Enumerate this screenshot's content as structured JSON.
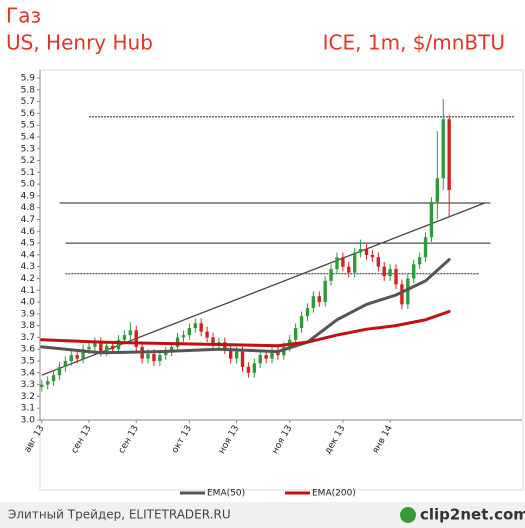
{
  "chart_data": {
    "type": "candlestick",
    "title": "Газ",
    "subtitle": "US, Henry Hub",
    "source_label": "ICE, 1m, $/mnBTU",
    "up_color": "#2e9a3a",
    "down_color": "#d42020",
    "open": [
      3.28,
      3.3,
      3.33,
      3.38,
      3.45,
      3.5,
      3.55,
      3.52,
      3.6,
      3.62,
      3.66,
      3.58,
      3.63,
      3.6,
      3.68,
      3.72,
      3.76,
      3.62,
      3.52,
      3.56,
      3.5,
      3.55,
      3.58,
      3.62,
      3.7,
      3.72,
      3.78,
      3.82,
      3.75,
      3.7,
      3.64,
      3.66,
      3.6,
      3.52,
      3.58,
      3.45,
      3.4,
      3.48,
      3.55,
      3.52,
      3.58,
      3.55,
      3.62,
      3.68,
      3.78,
      3.88,
      3.95,
      4.05,
      4.0,
      4.18,
      4.28,
      4.38,
      4.3,
      4.25,
      4.42,
      4.45,
      4.4,
      4.38,
      4.3,
      4.22,
      4.28,
      4.15,
      3.98,
      4.2,
      4.32,
      4.38,
      4.55,
      4.85,
      5.05,
      5.55
    ],
    "high": [
      3.34,
      3.37,
      3.42,
      3.49,
      3.54,
      3.59,
      3.59,
      3.64,
      3.66,
      3.7,
      3.7,
      3.67,
      3.67,
      3.72,
      3.76,
      3.83,
      3.8,
      3.66,
      3.6,
      3.6,
      3.59,
      3.62,
      3.66,
      3.74,
      3.76,
      3.82,
      3.86,
      3.86,
      3.79,
      3.74,
      3.7,
      3.7,
      3.64,
      3.62,
      3.62,
      3.49,
      3.52,
      3.59,
      3.59,
      3.62,
      3.62,
      3.66,
      3.72,
      3.82,
      3.92,
      3.99,
      4.09,
      4.09,
      4.22,
      4.32,
      4.42,
      4.42,
      4.34,
      4.46,
      4.53,
      4.49,
      4.44,
      4.42,
      4.34,
      4.32,
      4.32,
      4.19,
      4.24,
      4.36,
      4.42,
      4.59,
      4.89,
      5.45,
      5.72,
      5.59
    ],
    "low": [
      3.24,
      3.26,
      3.29,
      3.34,
      3.41,
      3.46,
      3.48,
      3.48,
      3.56,
      3.58,
      3.54,
      3.54,
      3.56,
      3.56,
      3.64,
      3.68,
      3.58,
      3.48,
      3.48,
      3.46,
      3.46,
      3.51,
      3.54,
      3.58,
      3.66,
      3.68,
      3.74,
      3.71,
      3.66,
      3.6,
      3.6,
      3.56,
      3.48,
      3.48,
      3.41,
      3.36,
      3.36,
      3.44,
      3.48,
      3.48,
      3.51,
      3.51,
      3.58,
      3.64,
      3.74,
      3.84,
      3.91,
      3.96,
      3.96,
      4.14,
      4.24,
      4.26,
      4.21,
      4.21,
      4.38,
      4.36,
      4.34,
      4.26,
      4.18,
      4.18,
      4.11,
      3.94,
      3.94,
      4.16,
      4.28,
      4.34,
      4.51,
      4.7,
      4.95,
      4.73
    ],
    "close": [
      3.3,
      3.33,
      3.38,
      3.45,
      3.5,
      3.55,
      3.52,
      3.6,
      3.62,
      3.66,
      3.58,
      3.63,
      3.6,
      3.68,
      3.72,
      3.76,
      3.62,
      3.52,
      3.56,
      3.5,
      3.55,
      3.58,
      3.62,
      3.7,
      3.72,
      3.78,
      3.82,
      3.75,
      3.7,
      3.64,
      3.66,
      3.6,
      3.52,
      3.58,
      3.45,
      3.4,
      3.48,
      3.55,
      3.52,
      3.58,
      3.55,
      3.62,
      3.68,
      3.78,
      3.88,
      3.95,
      4.05,
      4.0,
      4.18,
      4.28,
      4.38,
      4.3,
      4.25,
      4.42,
      4.45,
      4.4,
      4.38,
      4.3,
      4.22,
      4.28,
      4.15,
      3.98,
      4.2,
      4.32,
      4.38,
      4.55,
      4.85,
      5.05,
      5.55,
      4.95
    ],
    "series": [
      {
        "name": "EMA(50)",
        "color": "#555555",
        "x": [
          0,
          10,
          20,
          30,
          40,
          45,
          50,
          55,
          60,
          65,
          69
        ],
        "values": [
          3.62,
          3.57,
          3.58,
          3.6,
          3.58,
          3.66,
          3.85,
          3.98,
          4.06,
          4.18,
          4.36
        ]
      },
      {
        "name": "EMA(200)",
        "color": "#c01010",
        "x": [
          0,
          10,
          20,
          30,
          40,
          45,
          50,
          55,
          60,
          65,
          69
        ],
        "values": [
          3.68,
          3.66,
          3.65,
          3.64,
          3.63,
          3.66,
          3.72,
          3.77,
          3.8,
          3.85,
          3.92
        ]
      }
    ],
    "levels": [
      {
        "value": 5.57,
        "x": [
          8,
          80
        ],
        "style": "dotted"
      },
      {
        "value": 4.84,
        "x": [
          3,
          76
        ],
        "style": "solid"
      },
      {
        "value": 4.5,
        "x": [
          4,
          76
        ],
        "style": "solid"
      },
      {
        "value": 4.24,
        "x": [
          4,
          74
        ],
        "style": "dotted"
      }
    ],
    "trendline": {
      "x": [
        0,
        75
      ],
      "values": [
        3.38,
        4.84
      ]
    },
    "xlim": [
      -0.3,
      81
    ],
    "ylim": [
      3,
      5.9
    ],
    "yticks": [
      {
        "value": 3,
        "label": "3.0"
      },
      3.1,
      3.2,
      3.3,
      3.4,
      3.5,
      3.6,
      3.7,
      3.8,
      3.9,
      {
        "value": 4,
        "label": "4.0"
      },
      4.1,
      4.2,
      4.3,
      4.4,
      4.5,
      4.6,
      4.7,
      4.8,
      4.9,
      {
        "value": 5,
        "label": "5.0"
      },
      5.1,
      5.2,
      5.3,
      5.4,
      5.5,
      5.6,
      5.7,
      5.8,
      5.9
    ],
    "xticks": [
      {
        "value": 0,
        "label": "авг 13"
      },
      {
        "value": 8,
        "label": "сен 13"
      },
      {
        "value": 16,
        "label": "сен 13"
      },
      {
        "value": 25,
        "label": "окт 13"
      },
      {
        "value": 33,
        "label": "ноя 13"
      },
      {
        "value": 42,
        "label": "ноя 13"
      },
      {
        "value": 51,
        "label": "дек 13"
      },
      {
        "value": 59,
        "label": "янв 14"
      }
    ],
    "footer": "Элитный Трейдер, ELITETRADER.RU",
    "logo": "clip2net.com"
  }
}
